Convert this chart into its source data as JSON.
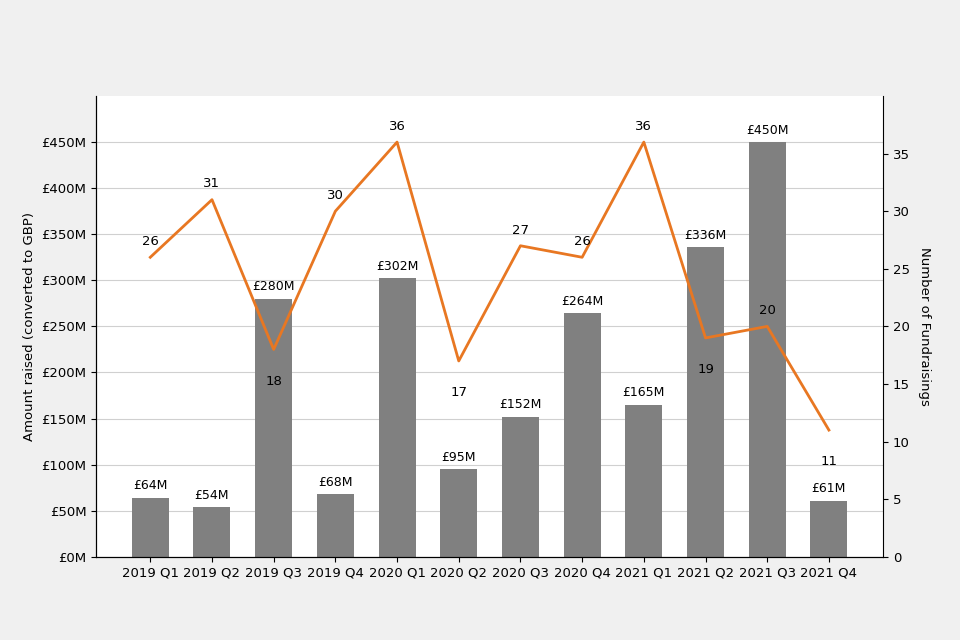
{
  "quarters": [
    "2019 Q1",
    "2019 Q2",
    "2019 Q3",
    "2019 Q4",
    "2020 Q1",
    "2020 Q2",
    "2020 Q3",
    "2020 Q4",
    "2021 Q1",
    "2021 Q2",
    "2021 Q3",
    "2021 Q4"
  ],
  "bar_values": [
    64,
    54,
    280,
    68,
    302,
    95,
    152,
    264,
    165,
    336,
    450,
    61
  ],
  "bar_labels": [
    "£64M",
    "£54M",
    "£280M",
    "£68M",
    "£302M",
    "£95M",
    "£152M",
    "£264M",
    "£165M",
    "£336M",
    "£450M",
    "£61M"
  ],
  "line_values": [
    26,
    31,
    18,
    30,
    36,
    17,
    27,
    26,
    36,
    19,
    20,
    11
  ],
  "bar_color": "#808080",
  "line_color": "#E87722",
  "ylabel_left": "Amount raised (converted to GBP)",
  "ylabel_right": "Number of Fundraisings",
  "ylim_left": [
    0,
    500
  ],
  "ylim_right": [
    0,
    40
  ],
  "yticks_left": [
    0,
    50,
    100,
    150,
    200,
    250,
    300,
    350,
    400,
    450
  ],
  "ytick_labels_left": [
    "£0M",
    "£50M",
    "£100M",
    "£150M",
    "£200M",
    "£250M",
    "£300M",
    "£350M",
    "£400M",
    "£450M"
  ],
  "yticks_right": [
    0,
    5,
    10,
    15,
    20,
    25,
    30,
    35
  ],
  "background_color": "#ffffff",
  "outer_bg_color": "#f0f0f0",
  "grid_color": "#d0d0d0",
  "font_size_axis": 9.5,
  "font_size_bar_labels": 9,
  "font_size_line_labels": 9.5
}
